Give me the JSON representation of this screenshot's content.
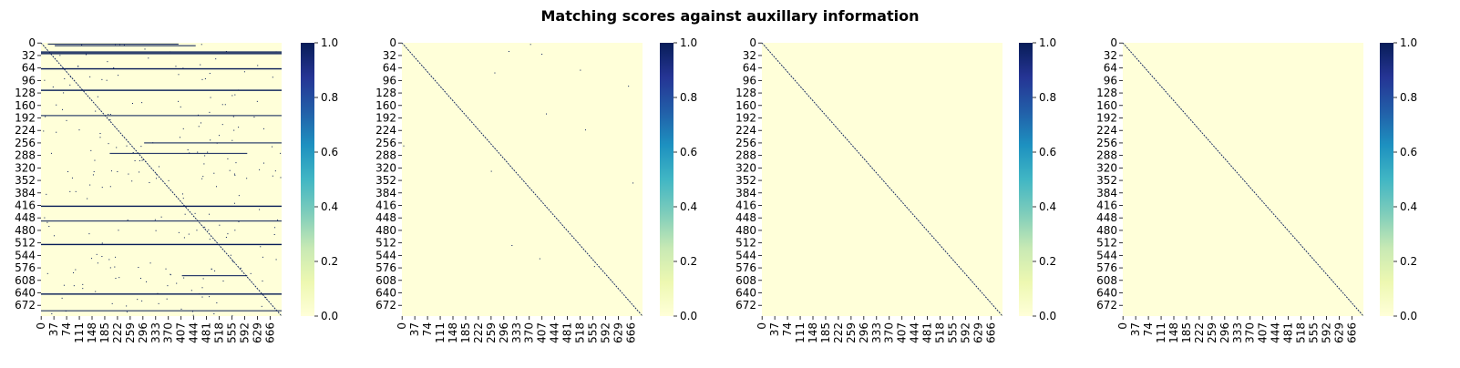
{
  "title": "Matching scores against auxillary information",
  "chart_data": {
    "type": "heatmap",
    "n": 700,
    "x_tick_labels": [
      "0",
      "37",
      "74",
      "111",
      "148",
      "185",
      "222",
      "259",
      "296",
      "333",
      "370",
      "407",
      "444",
      "481",
      "518",
      "555",
      "592",
      "629",
      "666"
    ],
    "y_tick_labels": [
      "0",
      "32",
      "64",
      "96",
      "128",
      "160",
      "192",
      "224",
      "256",
      "288",
      "320",
      "352",
      "384",
      "416",
      "448",
      "480",
      "512",
      "544",
      "576",
      "608",
      "640",
      "672"
    ],
    "colorbar": {
      "min": 0.0,
      "max": 1.0,
      "ticks": [
        "0.0",
        "0.2",
        "0.4",
        "0.6",
        "0.8",
        "1.0"
      ]
    },
    "colormap": {
      "name": "YlGnBu",
      "low": "#ffffd9",
      "mid": "#41b6c4",
      "high": "#081d58"
    },
    "panels": [
      {
        "name": "panel-1",
        "diagonal": true,
        "full_rows": [
          22,
          26,
          65,
          120,
          417,
          515,
          642
        ],
        "partial_rows": [
          [
            2,
            20,
            400
          ],
          [
            6,
            40,
            450
          ],
          [
            185,
            0,
            700
          ],
          [
            255,
            300,
            700
          ],
          [
            282,
            200,
            600
          ],
          [
            455,
            0,
            700
          ],
          [
            595,
            410,
            600
          ],
          [
            685,
            0,
            700
          ]
        ],
        "scatter_density": 0.012
      },
      {
        "name": "panel-2",
        "diagonal": true,
        "full_rows": [],
        "partial_rows": [],
        "scatter_density": 0.0007
      },
      {
        "name": "panel-3",
        "diagonal": true,
        "full_rows": [],
        "partial_rows": [],
        "scatter_density": 0.0
      },
      {
        "name": "panel-4",
        "diagonal": true,
        "full_rows": [],
        "partial_rows": [],
        "scatter_density": 0.0
      }
    ]
  }
}
